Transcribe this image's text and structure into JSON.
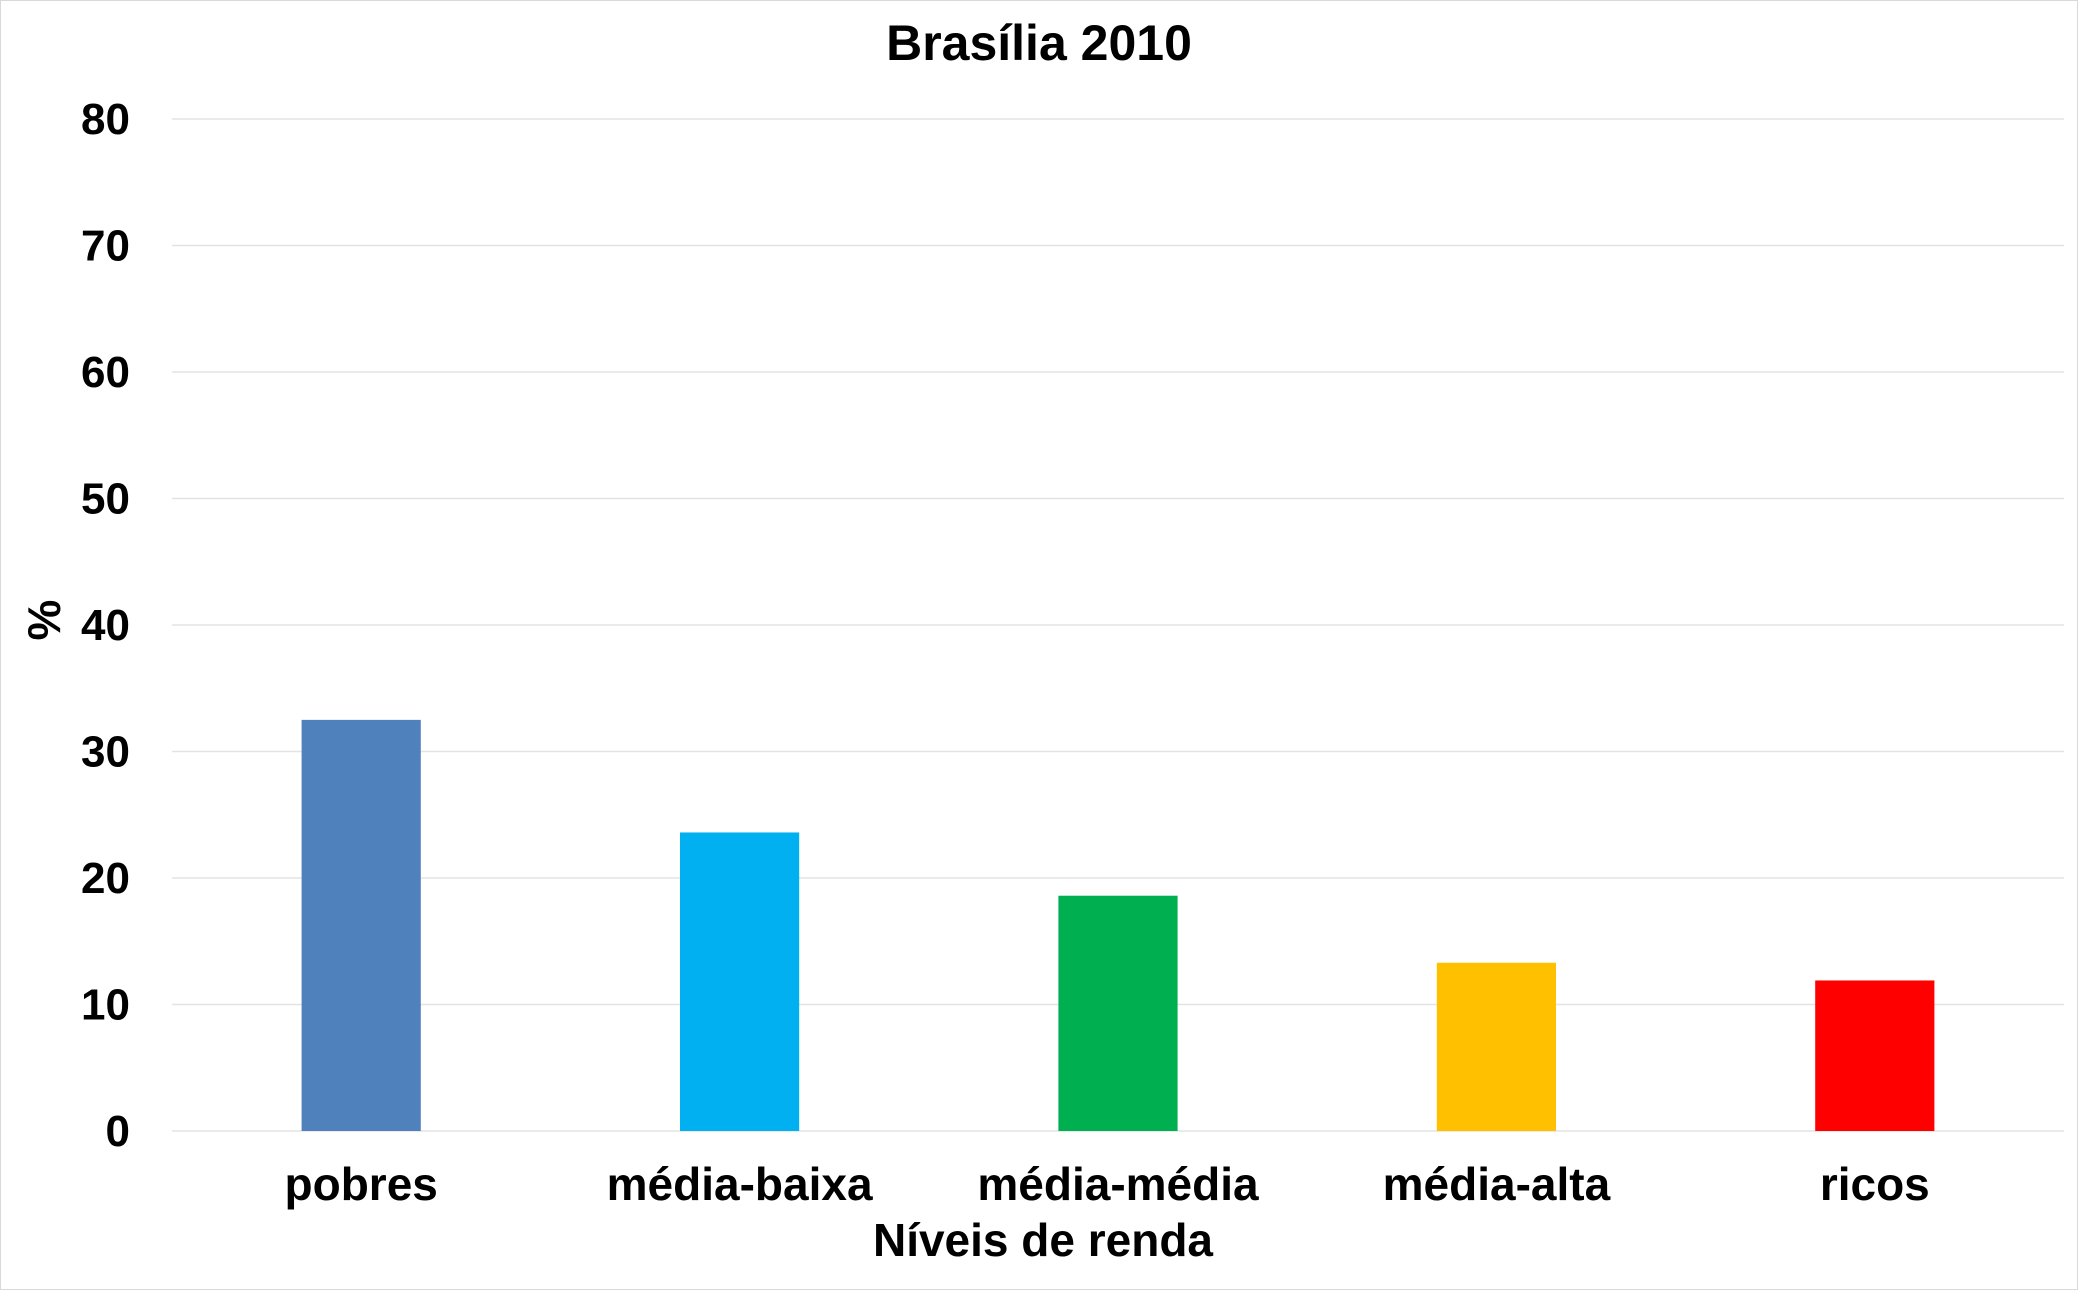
{
  "chart_data": {
    "type": "bar",
    "title": "Brasília 2010",
    "xlabel": "Níveis de renda",
    "ylabel": "%",
    "categories": [
      "pobres",
      "média-baixa",
      "média-média",
      "média-alta",
      "ricos"
    ],
    "values": [
      32.5,
      23.6,
      18.6,
      13.3,
      11.9
    ],
    "colors": [
      "#4f81bd",
      "#00b0f0",
      "#00b050",
      "#ffc000",
      "#ff0000"
    ],
    "ylim": [
      0,
      80
    ],
    "yticks": [
      "0",
      "10",
      "20",
      "30",
      "40",
      "50",
      "60",
      "70",
      "80"
    ],
    "grid": true,
    "legend": "none"
  }
}
